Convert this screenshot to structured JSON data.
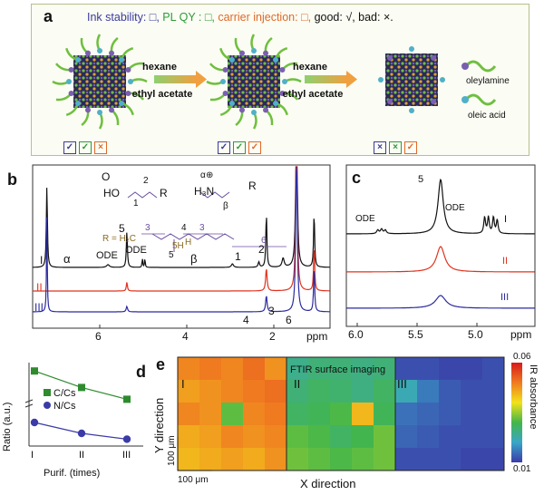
{
  "panel_a": {
    "label": "a",
    "legend": {
      "ink": "Ink stability: □,",
      "plqy": "PL QY : □,",
      "carrier": "carrier injection: □,",
      "goodbad": "good: √, bad: ×."
    },
    "step1": {
      "top": "hexane",
      "bottom": "ethyl acetate"
    },
    "step2": {
      "top": "hexane",
      "bottom": "ethyl acetate"
    },
    "ligands": {
      "oleylamine": "oleylamine",
      "oleic": "oleic acid"
    },
    "marks": [
      [
        "✓",
        "✓",
        "×"
      ],
      [
        "✓",
        "✓",
        "✓"
      ],
      [
        "×",
        "×",
        "✓"
      ]
    ],
    "colors": {
      "blue": "#3a3aa0",
      "green": "#2e9a3a",
      "orange": "#e06a2a",
      "ligand": "#6fbf3f",
      "head": "#7a5fb0"
    }
  },
  "panel_b": {
    "label": "b",
    "xaxis_unit": "ppm",
    "ticks": [
      "6",
      "4",
      "2"
    ],
    "traces": [
      "I",
      "II",
      "III"
    ],
    "trace_colors": [
      "#111111",
      "#e0331f",
      "#2b2ba0"
    ],
    "peak_labels": {
      "alpha": "α",
      "ode1": "ODE",
      "five": "5",
      "ode2": "ODE",
      "beta": "β",
      "one": "1",
      "two": "2",
      "three": "3",
      "four": "4",
      "six": "6"
    },
    "structures": {
      "acid_o": "O",
      "acid_ho": "HO",
      "acid_1": "1",
      "acid_2": "2",
      "acid_r": "R",
      "amine_alpha": "α",
      "amine_h3n": "H₃N",
      "amine_beta": "β",
      "amine_r": "R",
      "amine_plus": "⊕",
      "chain_r": "R = H₂C",
      "chain_3a": "3",
      "chain_4": "4",
      "chain_3b": "3",
      "chain_6": "6",
      "chain_5a": "5H",
      "chain_5b": "H",
      "chain_5c": "5"
    }
  },
  "panel_c": {
    "label": "c",
    "xaxis_unit": "ppm",
    "ticks": [
      "6.0",
      "5.5",
      "5.0"
    ],
    "peak_labels": {
      "five": "5",
      "ode_left": "ODE",
      "ode_right": "ODE"
    },
    "traces": [
      "I",
      "II",
      "III"
    ]
  },
  "panel_d": {
    "label": "d",
    "ylabel": "Ratio (a.u.)",
    "xlabel": "Purif. (times)",
    "categories": [
      "I",
      "II",
      "III"
    ],
    "legend": [
      "C/Cs",
      "N/Cs"
    ]
  },
  "panel_e": {
    "label": "e",
    "ylabel": "Y direction",
    "xlabel": "X direction",
    "scale_y": "100 μm",
    "scale_x": "100 μm",
    "tiles": [
      "I",
      "II",
      "III"
    ],
    "title": "FTIR surface imaging",
    "colorbar": {
      "max": "0.06",
      "min": "0.01",
      "label": "IR absorbance"
    }
  },
  "chart_data": [
    {
      "type": "line",
      "panel": "d",
      "categories": [
        "I",
        "II",
        "III"
      ],
      "series": [
        {
          "name": "C/Cs",
          "values": [
            22,
            15,
            10
          ],
          "color": "#2e8b2e",
          "marker": "square"
        },
        {
          "name": "N/Cs",
          "values": [
            6.5,
            5,
            4.2
          ],
          "color": "#3b3ba8",
          "marker": "circle"
        }
      ],
      "ylabel": "Ratio (a.u.)",
      "xlabel": "Purif. (times)"
    },
    {
      "type": "heatmap",
      "panel": "e",
      "tiles": [
        {
          "name": "I",
          "grid": [
            [
              0.05,
              0.051,
              0.05,
              0.052,
              0.049
            ],
            [
              0.048,
              0.049,
              0.05,
              0.051,
              0.052
            ],
            [
              0.05,
              0.049,
              0.034,
              0.05,
              0.051
            ],
            [
              0.047,
              0.048,
              0.05,
              0.049,
              0.05
            ],
            [
              0.046,
              0.047,
              0.048,
              0.047,
              0.049
            ]
          ]
        },
        {
          "name": "II",
          "grid": [
            [
              0.026,
              0.028,
              0.028,
              0.027,
              0.028
            ],
            [
              0.028,
              0.03,
              0.029,
              0.027,
              0.03
            ],
            [
              0.03,
              0.031,
              0.033,
              0.046,
              0.031
            ],
            [
              0.034,
              0.033,
              0.03,
              0.032,
              0.035
            ],
            [
              0.035,
              0.034,
              0.033,
              0.034,
              0.035
            ]
          ]
        },
        {
          "name": "III",
          "grid": [
            [
              0.012,
              0.012,
              0.011,
              0.011,
              0.012
            ],
            [
              0.022,
              0.016,
              0.013,
              0.012,
              0.012
            ],
            [
              0.015,
              0.014,
              0.013,
              0.012,
              0.012
            ],
            [
              0.014,
              0.013,
              0.012,
              0.012,
              0.012
            ],
            [
              0.012,
              0.012,
              0.012,
              0.011,
              0.011
            ]
          ]
        }
      ],
      "colorbar": {
        "min": 0.01,
        "max": 0.06,
        "label": "IR absorbance"
      }
    }
  ]
}
